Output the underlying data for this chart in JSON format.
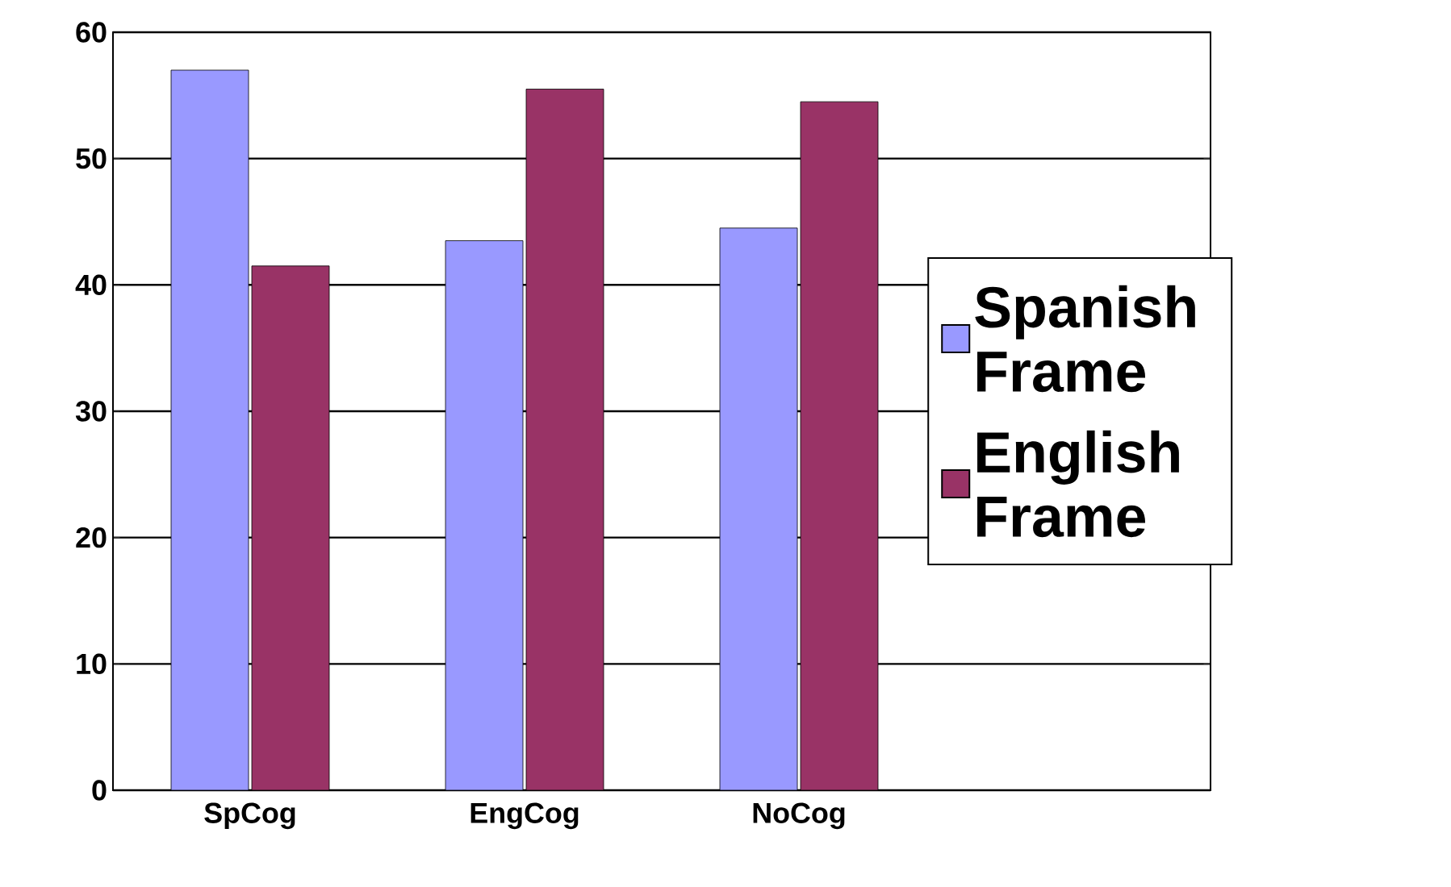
{
  "chart_data": {
    "type": "bar",
    "categories": [
      "SpCog",
      "EngCog",
      "NoCog",
      null
    ],
    "series": [
      {
        "name": "Spanish Frame",
        "color": "#9999ff",
        "values": [
          57,
          43.5,
          44.5,
          null
        ]
      },
      {
        "name": "English Frame",
        "color": "#993366",
        "values": [
          41.5,
          55.5,
          54.5,
          null
        ]
      }
    ],
    "ylim": [
      0,
      60
    ],
    "yticks": [
      0,
      10,
      20,
      30,
      40,
      50,
      60
    ],
    "grid": "y",
    "legend": "right"
  }
}
